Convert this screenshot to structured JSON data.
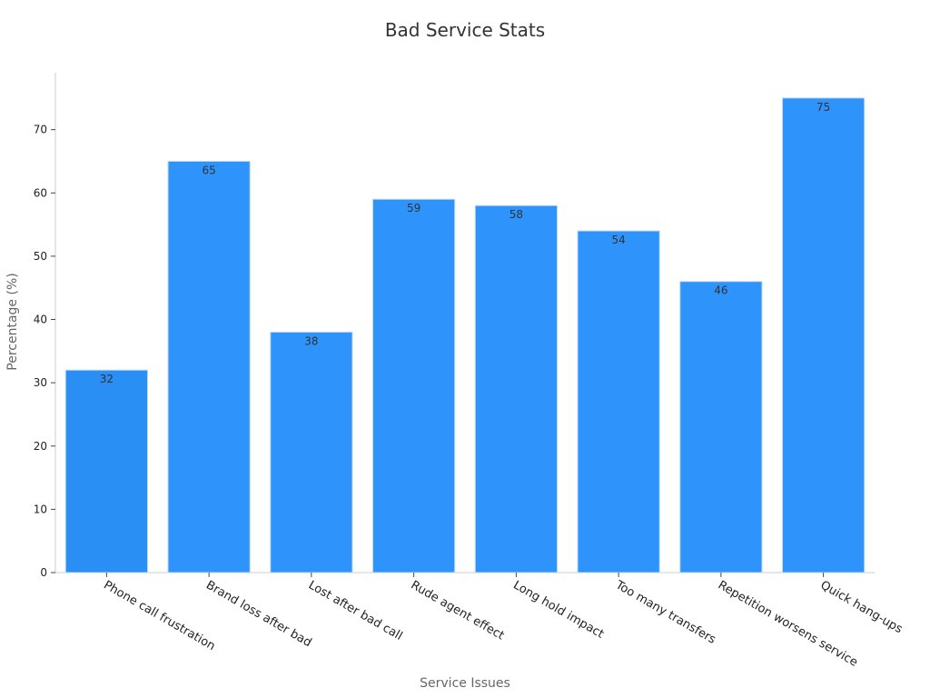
{
  "chart_data": {
    "type": "bar",
    "title": "Bad Service Stats",
    "xlabel": "Service Issues",
    "ylabel": "Percentage (%)",
    "categories": [
      "Phone call frustration",
      "Brand loss after bad",
      "Lost after bad call",
      "Rude agent effect",
      "Long hold impact",
      "Too many transfers",
      "Repetition worsens service",
      "Quick hang-ups"
    ],
    "values": [
      32,
      65,
      38,
      59,
      58,
      54,
      46,
      75
    ],
    "ylim": [
      0,
      79
    ],
    "yticks": [
      0,
      10,
      20,
      30,
      40,
      50,
      60,
      70
    ],
    "grid": false,
    "legend": "none",
    "bar_color": "#2e93fa",
    "bar_color_first": "#2a8ff5"
  }
}
